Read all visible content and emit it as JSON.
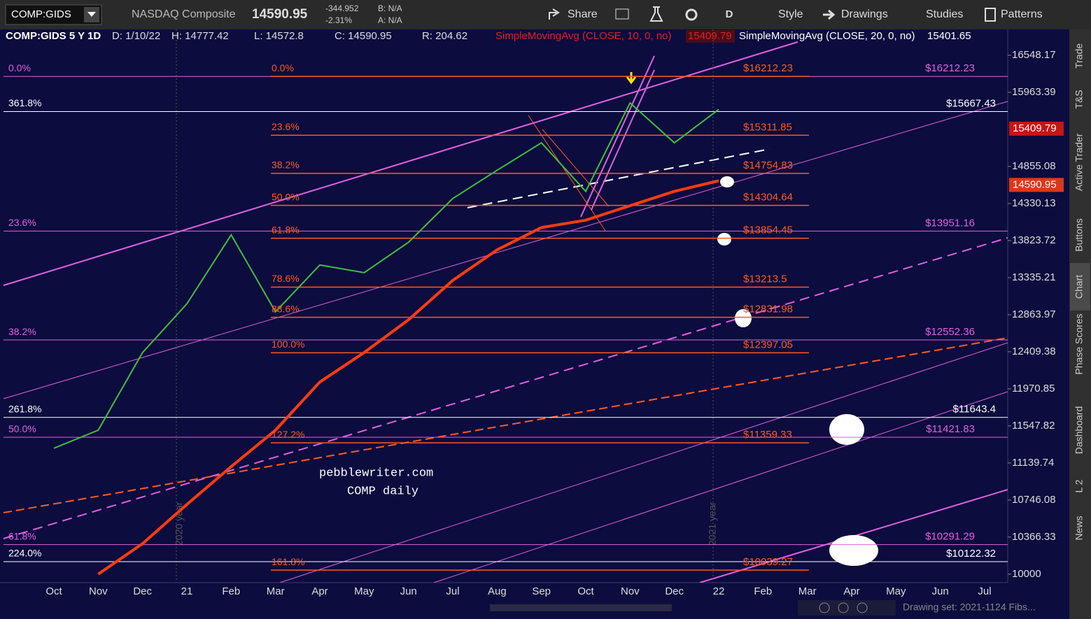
{
  "toolbar": {
    "symbol": "COMP:GIDS",
    "name": "NASDAQ Composite",
    "last": "14590.95",
    "change": "-344.952",
    "change_pct": "-2.31%",
    "bid": "B: N/A",
    "ask": "A: N/A",
    "period": "D",
    "buttons": [
      "Share",
      "Style",
      "Drawings",
      "Studies",
      "Patterns"
    ]
  },
  "header": {
    "title": "COMP:GIDS 5 Y 1D",
    "date": "D: 1/10/22",
    "high": "H: 14777.42",
    "low": "L: 14572.8",
    "close": "C: 14590.95",
    "range": "R: 204.62",
    "study1": "SimpleMovingAvg (CLOSE, 10, 0, no)",
    "study1_value": "15409.79",
    "study2": "SimpleMovingAvg (CLOSE, 20, 0, no)",
    "study2_value": "15401.65"
  },
  "chart_data": {
    "type": "line",
    "log_scale": true,
    "categories": [
      "Oct",
      "Nov",
      "Dec",
      "21",
      "Feb",
      "Mar",
      "Apr",
      "May",
      "Jun",
      "Jul",
      "Aug",
      "Sep",
      "Oct",
      "Nov",
      "Dec",
      "22",
      "Feb",
      "Mar",
      "Apr",
      "May",
      "Jun",
      "Jul"
    ],
    "series": [
      {
        "name": "Close",
        "color": "#3fbf3f",
        "values": [
          11300,
          11500,
          12400,
          13000,
          13900,
          12900,
          13500,
          13400,
          13800,
          14400,
          14800,
          15200,
          14500,
          15800,
          15200,
          15700,
          null,
          null,
          null,
          null,
          null,
          null
        ]
      },
      {
        "name": "SMA 200",
        "color": "#ff3b10",
        "values": [
          null,
          10000,
          10300,
          10700,
          11100,
          11500,
          12050,
          12400,
          12800,
          13300,
          13700,
          14000,
          14100,
          14300,
          14500,
          14650,
          null,
          null,
          null,
          null,
          null,
          null
        ]
      }
    ],
    "ylim": [
      9918,
      16969
    ],
    "yticks": [
      16548.17,
      15963.39,
      14855.08,
      14330.13,
      13823.72,
      13335.21,
      12863.97,
      12409.38,
      11970.85,
      11547.82,
      11139.74,
      10746.08,
      10366.33,
      10000
    ],
    "price_tags": [
      {
        "value": 15409.79,
        "color": "#c81414"
      },
      {
        "value": 14590.95,
        "color": "#e0361a"
      }
    ],
    "fib_groups": [
      {
        "color": "#e060e0",
        "levels": [
          {
            "label": "0.0%",
            "value": 16212.23,
            "price_label": "$16212.23"
          },
          {
            "label": "23.6%",
            "value": 13951.16,
            "price_label": "$13951.16"
          },
          {
            "label": "38.2%",
            "value": 12552.36,
            "price_label": "$12552.36"
          },
          {
            "label": "50.0%",
            "value": 11421.83,
            "price_label": "$11421.83"
          },
          {
            "label": "61.8%",
            "value": 10291.29,
            "price_label": "$10291.29"
          }
        ]
      },
      {
        "color": "#ffffff",
        "levels": [
          {
            "label": "361.8%",
            "value": 15667.43,
            "price_label": "$15667.43"
          },
          {
            "label": "261.8%",
            "value": 11643.4,
            "price_label": "$11643.4"
          },
          {
            "label": "224.0%",
            "value": 10122.32,
            "price_label": "$10122.32"
          }
        ]
      },
      {
        "color": "#ff5a1f",
        "levels": [
          {
            "label": "0.0%",
            "value": 16212.23,
            "price_label": "$16212.23"
          },
          {
            "label": "23.6%",
            "value": 15311.85,
            "price_label": "$15311.85"
          },
          {
            "label": "38.2%",
            "value": 14754.83,
            "price_label": "$14754.83"
          },
          {
            "label": "50.0%",
            "value": 14304.64,
            "price_label": "$14304.64"
          },
          {
            "label": "61.8%",
            "value": 13854.45,
            "price_label": "$13854.45"
          },
          {
            "label": "78.6%",
            "value": 13213.5,
            "price_label": "$13213.5"
          },
          {
            "label": "88.6%",
            "value": 12831.98,
            "price_label": "$12831.98"
          },
          {
            "label": "100.0%",
            "value": 12397.05,
            "price_label": "$12397.05"
          },
          {
            "label": "127.2%",
            "value": 11359.33,
            "price_label": "$11359.33"
          },
          {
            "label": "161.8%",
            "value": 10039.27,
            "price_label": "$10039.27"
          }
        ]
      }
    ],
    "annotations": [
      "pebblewriter.com",
      "COMP daily",
      "2020 year",
      "2021 year"
    ]
  },
  "sidebar": [
    "Trade",
    "T&S",
    "Active Trader",
    "Buttons",
    "Chart",
    "Phase Scores",
    "Dashboard",
    "L 2",
    "News"
  ],
  "footer": "Drawing set: 2021-1124 Fibs..."
}
